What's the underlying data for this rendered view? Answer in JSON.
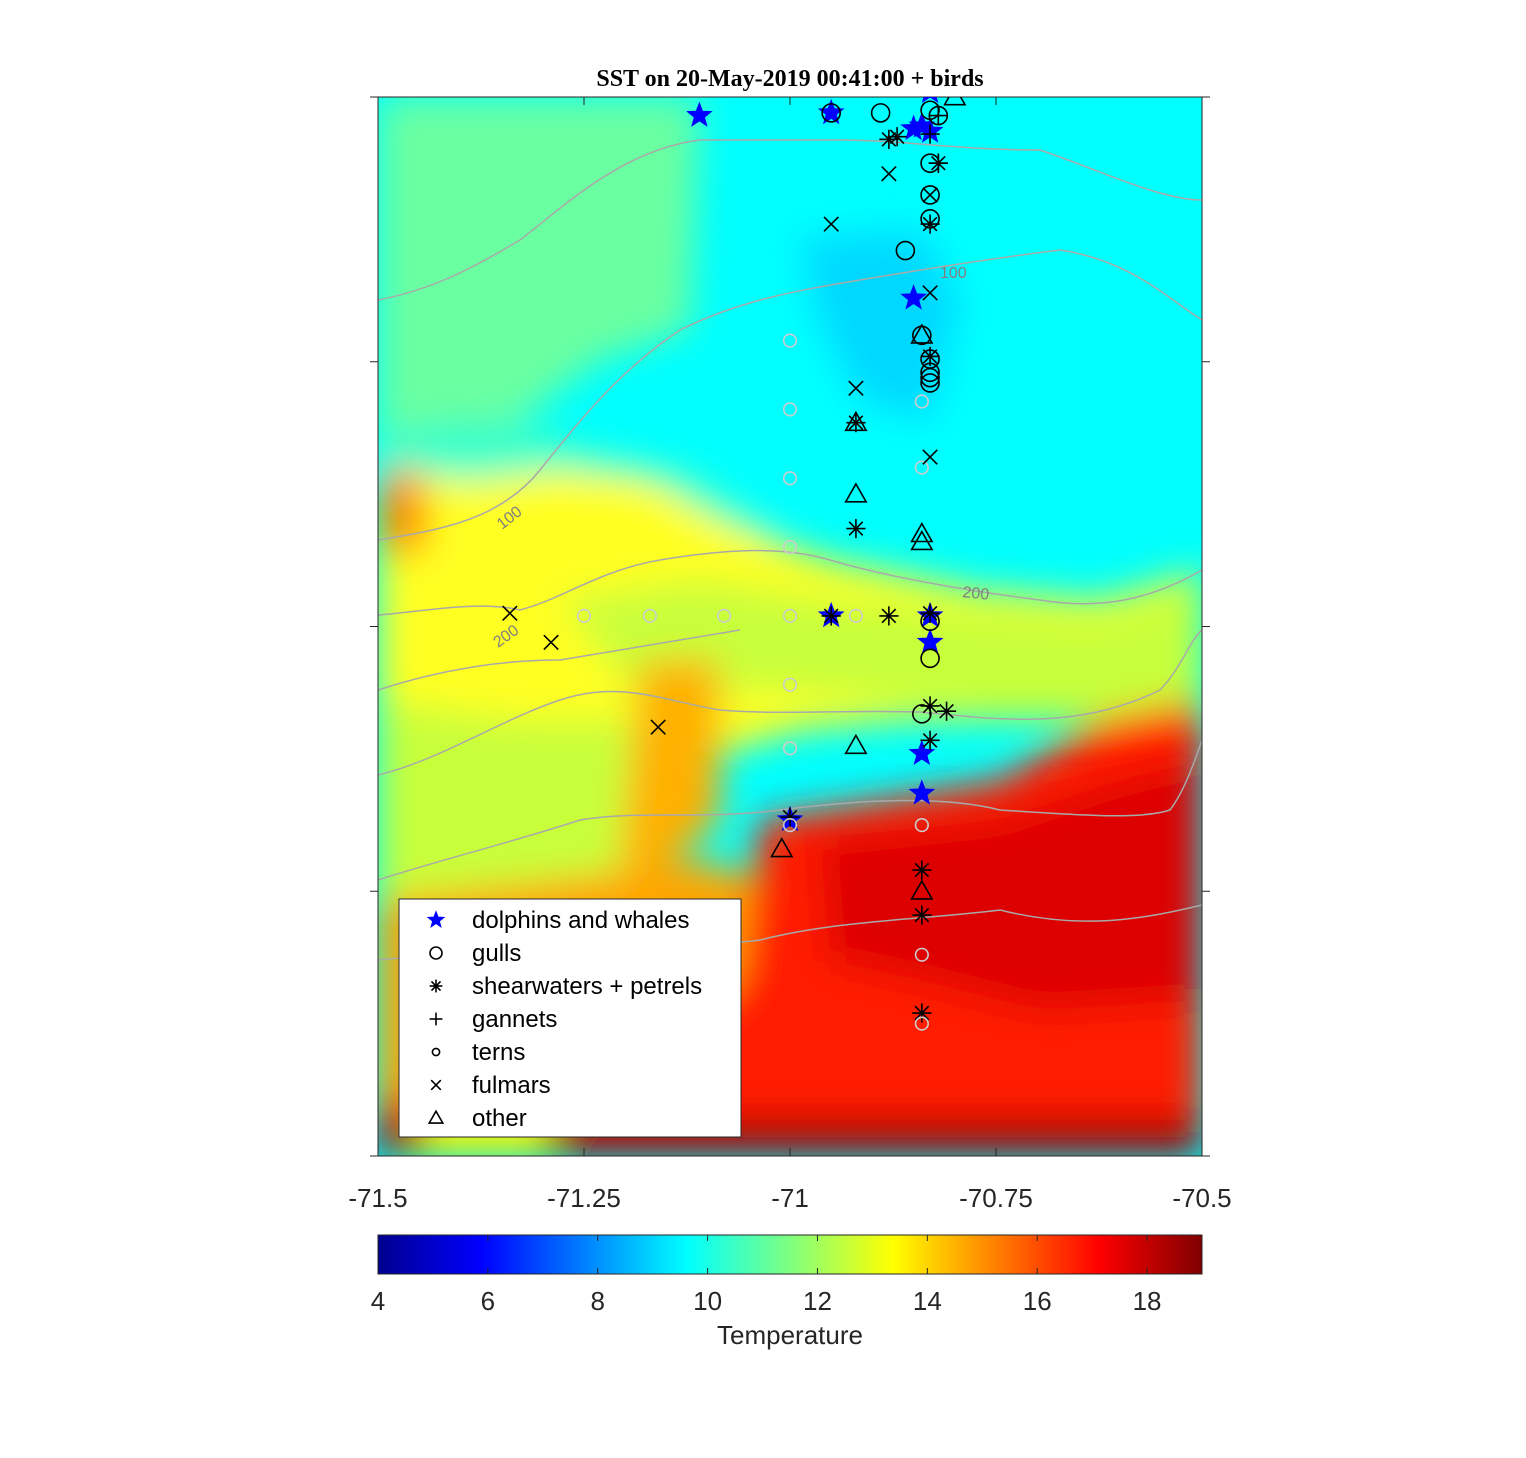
{
  "chart_data": {
    "type": "scatter",
    "title": "SST on 20-May-2019 00:41:00 + birds",
    "x_ticks": [
      "-71.5",
      "-71.25",
      "-71",
      "-70.75",
      "-70.5"
    ],
    "xlim": [
      -71.5,
      -70.5
    ],
    "ylim": [
      0,
      4
    ],
    "y_tick_labels": "none",
    "background": "sea surface temperature field (jet colormap)",
    "colorbar": {
      "label": "Temperature",
      "ticks": [
        "4",
        "6",
        "8",
        "10",
        "12",
        "14",
        "16",
        "18"
      ],
      "range": [
        4,
        19
      ],
      "colormap": "jet"
    },
    "contours": [
      {
        "label": "100"
      },
      {
        "label": "100"
      },
      {
        "label": "200"
      },
      {
        "label": "200"
      }
    ],
    "legend": {
      "placement": "bottom-left",
      "entries": [
        {
          "label": "dolphins and whales",
          "marker": "star",
          "color": "#0000ff"
        },
        {
          "label": "gulls",
          "marker": "circle",
          "color": "#000000"
        },
        {
          "label": "shearwaters + petrels",
          "marker": "asterisk",
          "color": "#000000"
        },
        {
          "label": "gannets",
          "marker": "plus",
          "color": "#000000"
        },
        {
          "label": "terns",
          "marker": "small-circle",
          "color": "#000000"
        },
        {
          "label": "fulmars",
          "marker": "x",
          "color": "#000000"
        },
        {
          "label": "other",
          "marker": "triangle",
          "color": "#000000"
        }
      ]
    },
    "series": [
      {
        "name": "dolphins and whales",
        "points": [
          [
            -71.11,
            3.93
          ],
          [
            -70.95,
            3.94
          ],
          [
            -70.83,
            4.02
          ],
          [
            -70.83,
            3.87
          ],
          [
            -70.85,
            3.88
          ],
          [
            -70.84,
            3.89
          ],
          [
            -70.85,
            3.24
          ],
          [
            -70.95,
            2.04
          ],
          [
            -70.83,
            2.04
          ],
          [
            -70.83,
            1.94
          ],
          [
            -70.84,
            1.52
          ],
          [
            -70.84,
            1.37
          ],
          [
            -71.0,
            1.27
          ]
        ]
      },
      {
        "name": "gulls",
        "points": [
          [
            -70.95,
            3.94
          ],
          [
            -70.89,
            3.94
          ],
          [
            -70.83,
            3.95
          ],
          [
            -70.82,
            3.93
          ],
          [
            -70.83,
            3.75
          ],
          [
            -70.83,
            3.63
          ],
          [
            -70.83,
            3.54
          ],
          [
            -70.86,
            3.42
          ],
          [
            -70.84,
            3.1
          ],
          [
            -70.83,
            3.01
          ],
          [
            -70.83,
            2.96
          ],
          [
            -70.83,
            2.94
          ],
          [
            -70.83,
            2.92
          ],
          [
            -70.83,
            2.02
          ],
          [
            -70.83,
            1.88
          ],
          [
            -70.84,
            1.67
          ]
        ]
      },
      {
        "name": "shearwaters + petrels",
        "points": [
          [
            -70.88,
            3.84
          ],
          [
            -70.87,
            3.85
          ],
          [
            -70.82,
            3.75
          ],
          [
            -70.83,
            3.52
          ],
          [
            -70.83,
            3.02
          ],
          [
            -70.92,
            2.77
          ],
          [
            -70.92,
            2.37
          ],
          [
            -70.95,
            2.04
          ],
          [
            -70.88,
            2.04
          ],
          [
            -70.83,
            2.05
          ],
          [
            -70.83,
            1.7
          ],
          [
            -70.81,
            1.68
          ],
          [
            -70.83,
            1.57
          ],
          [
            -71.0,
            1.28
          ],
          [
            -70.84,
            1.08
          ],
          [
            -70.84,
            0.91
          ],
          [
            -70.84,
            0.54
          ]
        ]
      },
      {
        "name": "gannets",
        "points": [
          [
            -70.82,
            3.93
          ],
          [
            -70.83,
            3.86
          ],
          [
            -70.82,
            3.75
          ]
        ]
      },
      {
        "name": "terns",
        "points": [
          [
            -71.0,
            3.08
          ],
          [
            -71.0,
            2.82
          ],
          [
            -71.0,
            2.56
          ],
          [
            -71.0,
            2.3
          ],
          [
            -71.25,
            2.04
          ],
          [
            -71.17,
            2.04
          ],
          [
            -71.08,
            2.04
          ],
          [
            -71.0,
            2.04
          ],
          [
            -70.92,
            2.04
          ],
          [
            -71.0,
            1.78
          ],
          [
            -71.0,
            1.54
          ],
          [
            -71.0,
            1.25
          ],
          [
            -70.84,
            2.85
          ],
          [
            -70.84,
            2.6
          ],
          [
            -70.84,
            1.25
          ],
          [
            -70.84,
            0.76
          ],
          [
            -70.84,
            0.5
          ]
        ]
      },
      {
        "name": "fulmars",
        "points": [
          [
            -70.88,
            3.71
          ],
          [
            -70.83,
            3.63
          ],
          [
            -70.95,
            3.52
          ],
          [
            -70.83,
            3.26
          ],
          [
            -70.92,
            2.9
          ],
          [
            -70.83,
            2.64
          ],
          [
            -71.34,
            2.05
          ],
          [
            -71.29,
            1.94
          ],
          [
            -71.16,
            1.62
          ]
        ]
      },
      {
        "name": "other",
        "points": [
          [
            -70.8,
            4.0
          ],
          [
            -70.84,
            3.1
          ],
          [
            -70.92,
            2.77
          ],
          [
            -70.92,
            2.5
          ],
          [
            -70.84,
            2.35
          ],
          [
            -70.84,
            2.32
          ],
          [
            -70.92,
            1.55
          ],
          [
            -71.01,
            1.16
          ],
          [
            -70.84,
            1.0
          ]
        ]
      }
    ]
  }
}
